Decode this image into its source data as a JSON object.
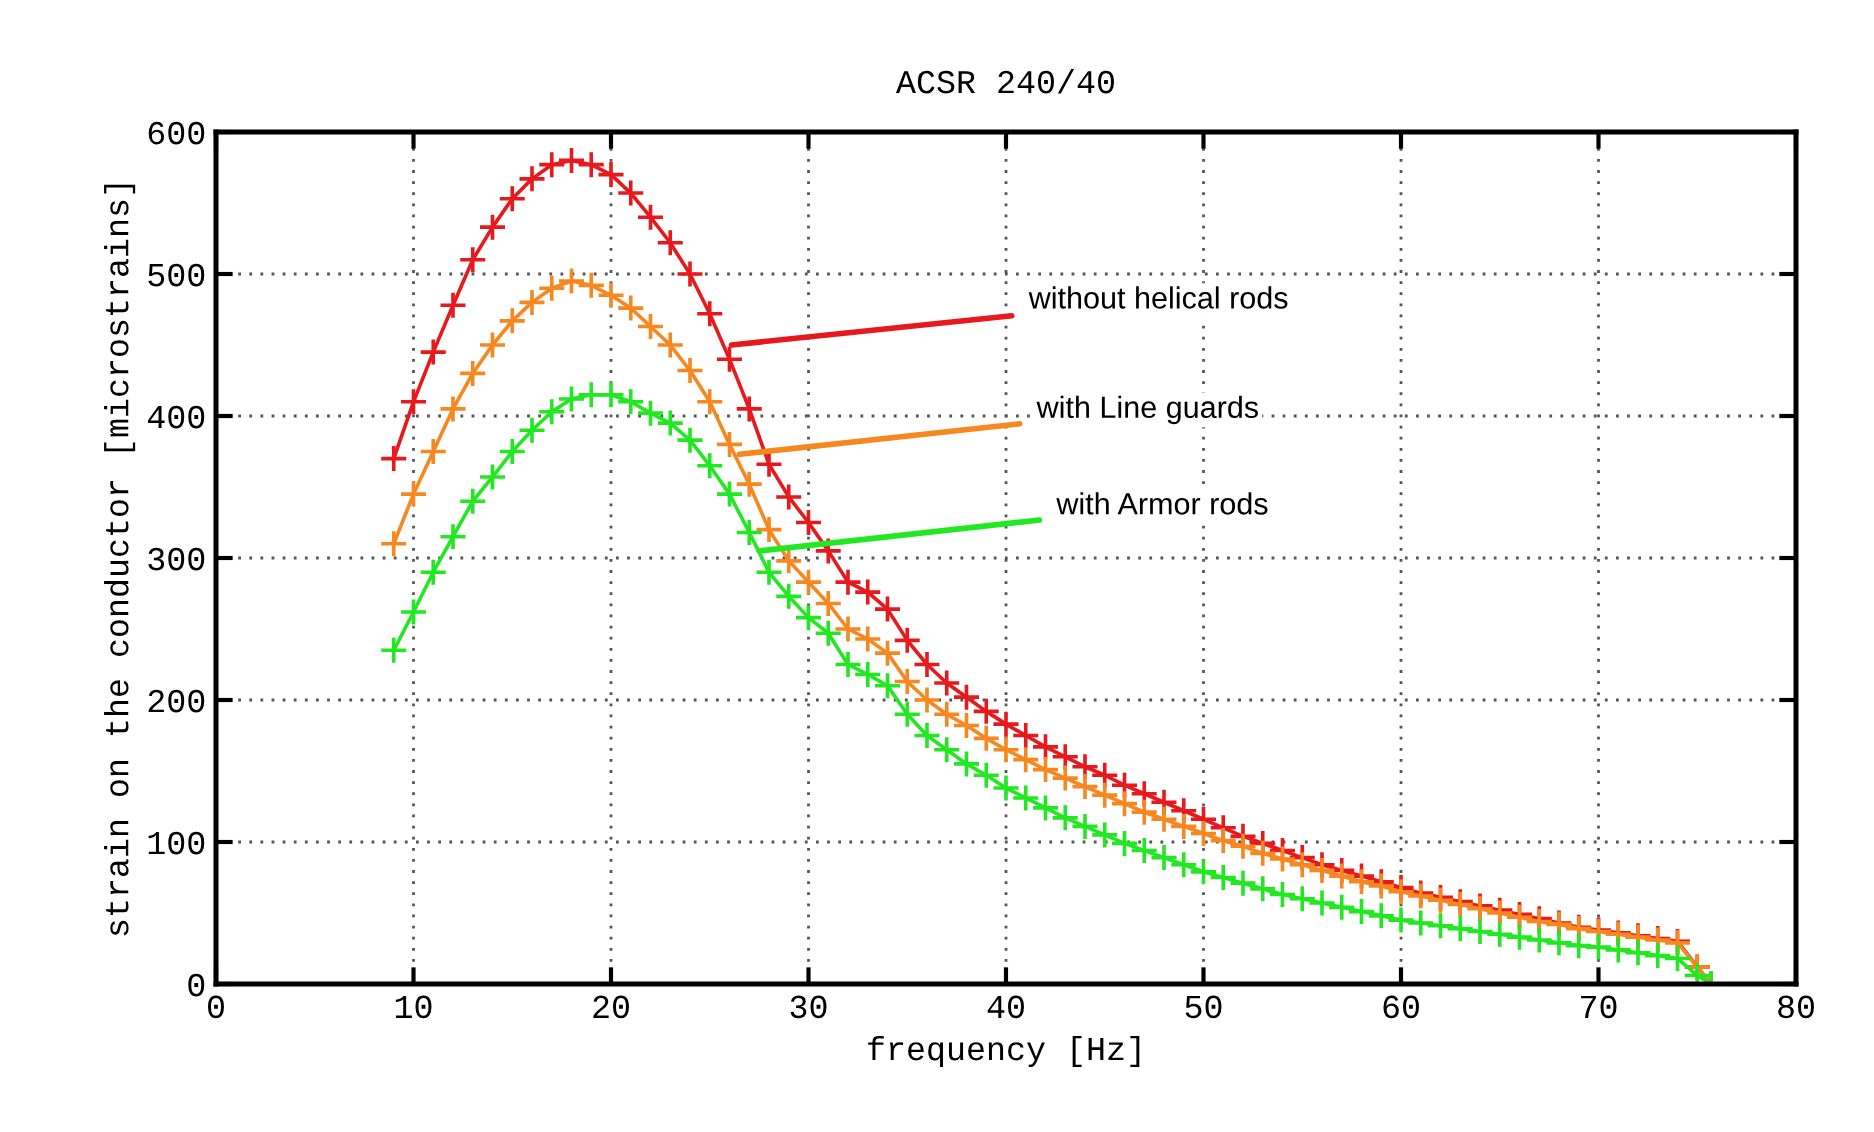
{
  "chart_data": {
    "type": "line",
    "title": "ACSR 240/40",
    "xlabel": "frequency [Hz]",
    "ylabel": "strain on the conductor [microstrains]",
    "x": [
      9,
      10,
      11,
      12,
      13,
      14,
      15,
      16,
      17,
      18,
      19,
      20,
      21,
      22,
      23,
      24,
      25,
      26,
      27,
      28,
      29,
      30,
      31,
      32,
      33,
      34,
      35,
      36,
      37,
      38,
      39,
      40,
      41,
      42,
      43,
      44,
      45,
      46,
      47,
      48,
      49,
      50,
      51,
      52,
      53,
      54,
      55,
      56,
      57,
      58,
      59,
      60,
      61,
      62,
      63,
      64,
      65,
      66,
      67,
      68,
      69,
      70,
      71,
      72,
      73,
      74,
      75,
      75.7
    ],
    "series": [
      {
        "color": "#e8191c",
        "values": [
          370,
          410,
          445,
          478,
          510,
          533,
          553,
          567,
          577,
          580,
          577,
          570,
          557,
          540,
          522,
          500,
          472,
          440,
          405,
          366,
          343,
          325,
          305,
          283,
          276,
          264,
          242,
          225,
          212,
          202,
          192,
          183,
          175,
          167,
          160,
          153,
          147,
          140,
          134,
          128,
          122,
          116,
          110,
          104,
          99,
          94,
          89,
          84,
          80,
          76,
          72,
          68,
          64,
          61,
          58,
          55,
          52,
          49,
          46,
          43,
          40,
          38,
          36,
          34,
          32,
          30,
          12,
          0
        ]
      },
      {
        "color": "#f7871f",
        "values": [
          310,
          345,
          375,
          405,
          430,
          450,
          467,
          480,
          490,
          495,
          492,
          485,
          476,
          463,
          450,
          432,
          410,
          380,
          352,
          320,
          298,
          283,
          268,
          250,
          243,
          233,
          213,
          200,
          190,
          182,
          173,
          165,
          158,
          151,
          145,
          139,
          133,
          127,
          121,
          116,
          111,
          106,
          101,
          97,
          92,
          88,
          84,
          80,
          76,
          72,
          69,
          65,
          62,
          59,
          56,
          53,
          50,
          47,
          44,
          42,
          39,
          37,
          35,
          33,
          31,
          29,
          12,
          0
        ]
      },
      {
        "color": "#22e822",
        "values": [
          235,
          262,
          290,
          315,
          340,
          357,
          375,
          390,
          403,
          412,
          415,
          415,
          410,
          402,
          395,
          383,
          365,
          345,
          318,
          290,
          273,
          258,
          247,
          225,
          218,
          210,
          190,
          175,
          165,
          155,
          147,
          138,
          131,
          124,
          117,
          111,
          105,
          99,
          94,
          89,
          84,
          79,
          75,
          71,
          67,
          63,
          60,
          57,
          54,
          51,
          48,
          45,
          43,
          41,
          39,
          37,
          35,
          33,
          31,
          29,
          27,
          26,
          24,
          22,
          20,
          18,
          6,
          0
        ]
      }
    ],
    "annotations": [
      {
        "text": "without helical rods",
        "x": 26.1,
        "y": 450
      },
      {
        "text": "with Line guards",
        "x": 26.5,
        "y": 373
      },
      {
        "text": "with Armor rods",
        "x": 27.5,
        "y": 305
      }
    ],
    "xlim": [
      0,
      80
    ],
    "xticks": [
      0,
      10,
      20,
      30,
      40,
      50,
      60,
      70,
      80
    ],
    "ylim": [
      0,
      600
    ],
    "yticks": [
      0,
      100,
      200,
      300,
      400,
      500,
      600
    ],
    "grid": true,
    "marker": "cross",
    "line_style": "solid"
  }
}
